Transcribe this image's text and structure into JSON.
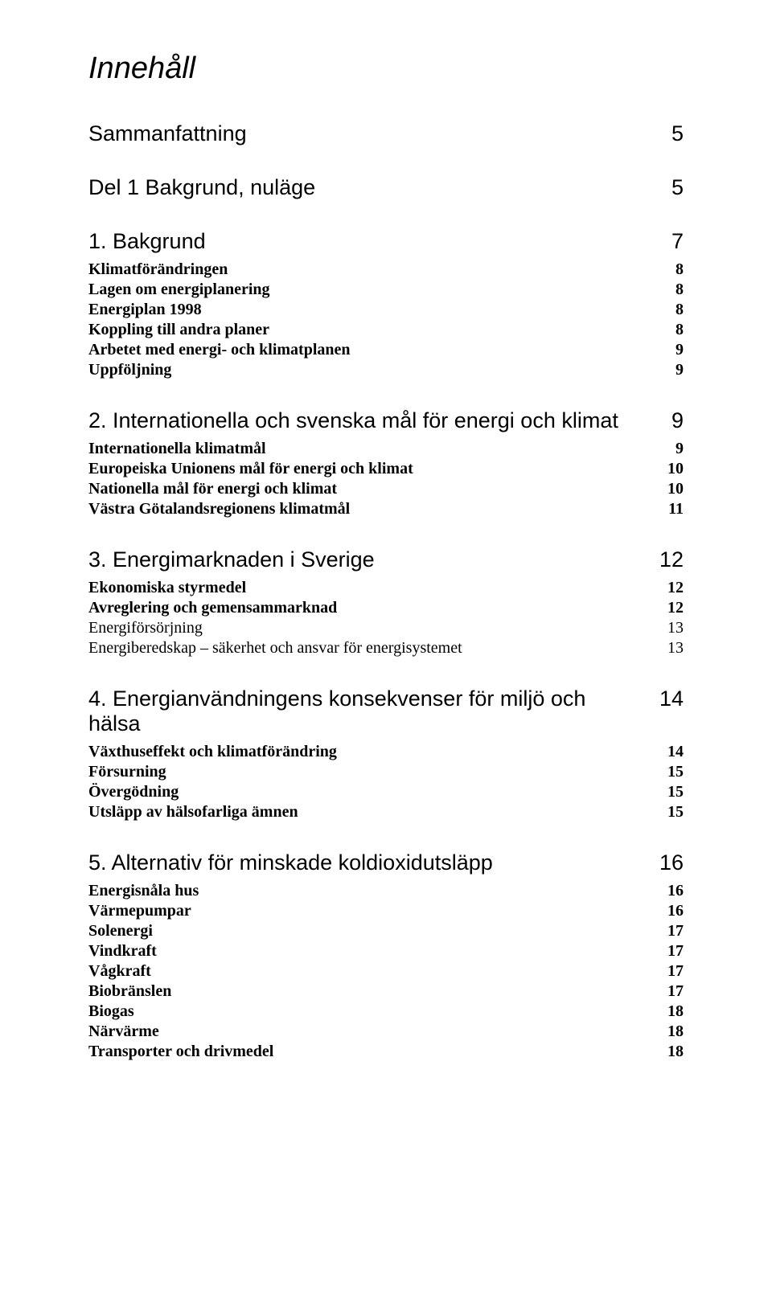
{
  "title": "Innehåll",
  "entries": [
    {
      "level": "h1",
      "label": "Sammanfattning",
      "page": 5,
      "first": true
    },
    {
      "level": "h1",
      "label": "Del 1 Bakgrund, nuläge",
      "page": 5
    },
    {
      "level": "h1",
      "label": "1. Bakgrund",
      "page": 7,
      "block": true
    },
    {
      "level": "h2",
      "label": "Klimatförändringen",
      "page": 8
    },
    {
      "level": "h2",
      "label": "Lagen om energiplanering",
      "page": 8
    },
    {
      "level": "h2",
      "label": "Energiplan 1998",
      "page": 8
    },
    {
      "level": "h2",
      "label": "Koppling till andra planer",
      "page": 8
    },
    {
      "level": "h2",
      "label": "Arbetet med energi- och klimatplanen",
      "page": 9
    },
    {
      "level": "h2",
      "label": "Uppföljning",
      "page": 9
    },
    {
      "level": "h1",
      "label": "2. Internationella och svenska mål för energi och klimat",
      "page": 9,
      "block": true
    },
    {
      "level": "h2",
      "label": "Internationella klimatmål",
      "page": 9
    },
    {
      "level": "h2",
      "label": "Europeiska Unionens mål för energi och klimat",
      "page": 10
    },
    {
      "level": "h2",
      "label": "Nationella mål för energi och klimat",
      "page": 10
    },
    {
      "level": "h2",
      "label": "Västra Götalandsregionens klimatmål",
      "page": 11
    },
    {
      "level": "h1",
      "label": "3. Energimarknaden i Sverige",
      "page": 12,
      "block": true
    },
    {
      "level": "h2",
      "label": "Ekonomiska styrmedel",
      "page": 12
    },
    {
      "level": "h2",
      "label": "Avreglering och gemensammarknad",
      "page": 12
    },
    {
      "level": "h3",
      "label": "Energiförsörjning",
      "page": 13
    },
    {
      "level": "h3",
      "label": "Energiberedskap – säkerhet och ansvar för energisystemet",
      "page": 13
    },
    {
      "level": "h1",
      "label": "4. Energianvändningens konsekvenser för miljö och hälsa",
      "page": 14,
      "block": true
    },
    {
      "level": "h2",
      "label": "Växthuseffekt och klimatförändring",
      "page": 14
    },
    {
      "level": "h2",
      "label": "Försurning",
      "page": 15
    },
    {
      "level": "h2",
      "label": "Övergödning",
      "page": 15
    },
    {
      "level": "h2",
      "label": "Utsläpp av hälsofarliga ämnen",
      "page": 15
    },
    {
      "level": "h1",
      "label": "5. Alternativ för minskade koldioxidutsläpp",
      "page": 16,
      "block": true
    },
    {
      "level": "h2",
      "label": "Energisnåla hus",
      "page": 16
    },
    {
      "level": "h2",
      "label": "Värmepumpar",
      "page": 16
    },
    {
      "level": "h2",
      "label": "Solenergi",
      "page": 17
    },
    {
      "level": "h2",
      "label": "Vindkraft",
      "page": 17
    },
    {
      "level": "h2",
      "label": "Vågkraft",
      "page": 17
    },
    {
      "level": "h2",
      "label": "Biobränslen",
      "page": 17
    },
    {
      "level": "h2",
      "label": "Biogas",
      "page": 18
    },
    {
      "level": "h2",
      "label": "Närvärme",
      "page": 18
    },
    {
      "level": "h2",
      "label": "Transporter och drivmedel",
      "page": 18
    }
  ]
}
